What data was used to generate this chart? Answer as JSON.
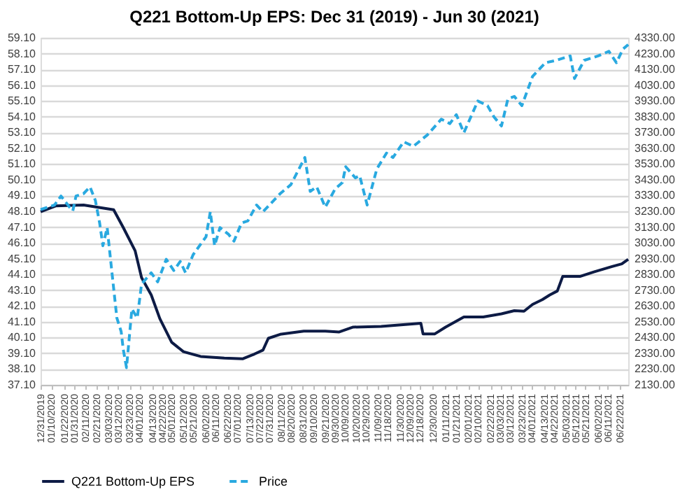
{
  "chart_data": {
    "type": "line",
    "title": "Q221 Bottom-Up EPS: Dec 31 (2019) - Jun 30 (2021)",
    "xlim": [
      "2019-12-31",
      "2021-06-30"
    ],
    "xticks": [
      {
        "value": "2019-12-31",
        "label": "12/31/2019"
      },
      {
        "value": "2020-01-10",
        "label": "01/10/2020"
      },
      {
        "value": "2020-01-22",
        "label": "01/22/2020"
      },
      {
        "value": "2020-01-31",
        "label": "01/31/2020"
      },
      {
        "value": "2020-02-11",
        "label": "02/11/2020"
      },
      {
        "value": "2020-02-21",
        "label": "02/21/2020"
      },
      {
        "value": "2020-03-03",
        "label": "03/03/2020"
      },
      {
        "value": "2020-03-12",
        "label": "03/12/2020"
      },
      {
        "value": "2020-03-23",
        "label": "03/23/2020"
      },
      {
        "value": "2020-04-01",
        "label": "04/01/2020"
      },
      {
        "value": "2020-04-13",
        "label": "04/13/2020"
      },
      {
        "value": "2020-04-22",
        "label": "04/22/2020"
      },
      {
        "value": "2020-05-01",
        "label": "05/01/2020"
      },
      {
        "value": "2020-05-12",
        "label": "05/12/2020"
      },
      {
        "value": "2020-05-21",
        "label": "05/21/2020"
      },
      {
        "value": "2020-06-02",
        "label": "06/02/2020"
      },
      {
        "value": "2020-06-11",
        "label": "06/11/2020"
      },
      {
        "value": "2020-06-22",
        "label": "06/22/2020"
      },
      {
        "value": "2020-07-01",
        "label": "07/01/2020"
      },
      {
        "value": "2020-07-13",
        "label": "07/13/2020"
      },
      {
        "value": "2020-07-22",
        "label": "07/22/2020"
      },
      {
        "value": "2020-07-31",
        "label": "07/31/2020"
      },
      {
        "value": "2020-08-11",
        "label": "08/11/2020"
      },
      {
        "value": "2020-08-20",
        "label": "08/20/2020"
      },
      {
        "value": "2020-08-31",
        "label": "08/31/2020"
      },
      {
        "value": "2020-09-10",
        "label": "09/10/2020"
      },
      {
        "value": "2020-09-21",
        "label": "09/21/2020"
      },
      {
        "value": "2020-09-30",
        "label": "09/30/2020"
      },
      {
        "value": "2020-10-09",
        "label": "10/09/2020"
      },
      {
        "value": "2020-10-20",
        "label": "10/20/2020"
      },
      {
        "value": "2020-10-29",
        "label": "10/29/2020"
      },
      {
        "value": "2020-11-09",
        "label": "11/09/2020"
      },
      {
        "value": "2020-11-18",
        "label": "11/18/2020"
      },
      {
        "value": "2020-11-30",
        "label": "11/30/2020"
      },
      {
        "value": "2020-12-09",
        "label": "12/09/2020"
      },
      {
        "value": "2020-12-18",
        "label": "12/18/2020"
      },
      {
        "value": "2020-12-30",
        "label": "12/30/2020"
      },
      {
        "value": "2021-01-11",
        "label": "01/11/2021"
      },
      {
        "value": "2021-01-21",
        "label": "01/21/2021"
      },
      {
        "value": "2021-02-01",
        "label": "02/01/2021"
      },
      {
        "value": "2021-02-10",
        "label": "02/10/2021"
      },
      {
        "value": "2021-02-22",
        "label": "02/22/2021"
      },
      {
        "value": "2021-03-03",
        "label": "03/03/2021"
      },
      {
        "value": "2021-03-12",
        "label": "03/12/2021"
      },
      {
        "value": "2021-03-23",
        "label": "03/23/2021"
      },
      {
        "value": "2021-04-01",
        "label": "04/01/2021"
      },
      {
        "value": "2021-04-13",
        "label": "04/13/2021"
      },
      {
        "value": "2021-04-22",
        "label": "04/22/2021"
      },
      {
        "value": "2021-05-03",
        "label": "05/03/2021"
      },
      {
        "value": "2021-05-12",
        "label": "05/12/2021"
      },
      {
        "value": "2021-05-21",
        "label": "05/21/2021"
      },
      {
        "value": "2021-06-02",
        "label": "06/02/2021"
      },
      {
        "value": "2021-06-11",
        "label": "06/11/2021"
      },
      {
        "value": "2021-06-22",
        "label": "06/22/2021"
      }
    ],
    "ylim": [
      37.1,
      59.1
    ],
    "yticks": [
      {
        "value": 37.1,
        "label": "37.10"
      },
      {
        "value": 38.1,
        "label": "38.10"
      },
      {
        "value": 39.1,
        "label": "39.10"
      },
      {
        "value": 40.1,
        "label": "40.10"
      },
      {
        "value": 41.1,
        "label": "41.10"
      },
      {
        "value": 42.1,
        "label": "42.10"
      },
      {
        "value": 43.1,
        "label": "43.10"
      },
      {
        "value": 44.1,
        "label": "44.10"
      },
      {
        "value": 45.1,
        "label": "45.10"
      },
      {
        "value": 46.1,
        "label": "46.10"
      },
      {
        "value": 47.1,
        "label": "47.10"
      },
      {
        "value": 48.1,
        "label": "48.10"
      },
      {
        "value": 49.1,
        "label": "49.10"
      },
      {
        "value": 50.1,
        "label": "50.10"
      },
      {
        "value": 51.1,
        "label": "51.10"
      },
      {
        "value": 52.1,
        "label": "52.10"
      },
      {
        "value": 53.1,
        "label": "53.10"
      },
      {
        "value": 54.1,
        "label": "54.10"
      },
      {
        "value": 55.1,
        "label": "55.10"
      },
      {
        "value": 56.1,
        "label": "56.10"
      },
      {
        "value": 57.1,
        "label": "57.10"
      },
      {
        "value": 58.1,
        "label": "58.10"
      },
      {
        "value": 59.1,
        "label": "59.10"
      }
    ],
    "y2lim": [
      2130,
      4330
    ],
    "y2ticks": [
      {
        "value": 2130,
        "label": "2130.00"
      },
      {
        "value": 2230,
        "label": "2230.00"
      },
      {
        "value": 2330,
        "label": "2330.00"
      },
      {
        "value": 2430,
        "label": "2430.00"
      },
      {
        "value": 2530,
        "label": "2530.00"
      },
      {
        "value": 2630,
        "label": "2630.00"
      },
      {
        "value": 2730,
        "label": "2730.00"
      },
      {
        "value": 2830,
        "label": "2830.00"
      },
      {
        "value": 2930,
        "label": "2930.00"
      },
      {
        "value": 3030,
        "label": "3030.00"
      },
      {
        "value": 3130,
        "label": "3130.00"
      },
      {
        "value": 3230,
        "label": "3230.00"
      },
      {
        "value": 3330,
        "label": "3330.00"
      },
      {
        "value": 3430,
        "label": "3430.00"
      },
      {
        "value": 3530,
        "label": "3530.00"
      },
      {
        "value": 3630,
        "label": "3630.00"
      },
      {
        "value": 3730,
        "label": "3730.00"
      },
      {
        "value": 3830,
        "label": "3830.00"
      },
      {
        "value": 3930,
        "label": "3930.00"
      },
      {
        "value": 4030,
        "label": "4030.00"
      },
      {
        "value": 4130,
        "label": "4130.00"
      },
      {
        "value": 4230,
        "label": "4230.00"
      },
      {
        "value": 4330,
        "label": "4330.00"
      }
    ],
    "grid": "y",
    "legend": "bottom",
    "series": [
      {
        "name": "Q221 Bottom-Up EPS",
        "color": "#0d1b45",
        "line_style": "solid",
        "x": [
          "2019-12-31",
          "2020-01-14",
          "2020-02-09",
          "2020-03-08",
          "2020-03-17",
          "2020-03-28",
          "2020-04-03",
          "2020-04-12",
          "2020-04-20",
          "2020-05-01",
          "2020-05-12",
          "2020-05-28",
          "2020-06-19",
          "2020-07-06",
          "2020-07-17",
          "2020-07-25",
          "2020-07-30",
          "2020-08-10",
          "2020-09-01",
          "2020-09-21",
          "2020-10-04",
          "2020-10-17",
          "2020-11-12",
          "2020-12-19",
          "2020-12-21",
          "2021-01-01",
          "2021-01-11",
          "2021-01-28",
          "2021-02-15",
          "2021-03-04",
          "2021-03-16",
          "2021-03-25",
          "2021-04-02",
          "2021-04-11",
          "2021-04-18",
          "2021-04-25",
          "2021-04-30",
          "2021-05-16",
          "2021-05-29",
          "2021-06-15",
          "2021-06-24",
          "2021-06-30"
        ],
        "values": [
          48.07,
          48.44,
          48.5,
          48.2,
          47.07,
          45.6,
          43.9,
          42.8,
          41.3,
          39.8,
          39.2,
          38.9,
          38.8,
          38.75,
          39.05,
          39.3,
          40.05,
          40.3,
          40.5,
          40.5,
          40.45,
          40.76,
          40.8,
          41.0,
          40.33,
          40.33,
          40.76,
          41.4,
          41.4,
          41.6,
          41.8,
          41.77,
          42.2,
          42.5,
          42.8,
          43.05,
          43.97,
          43.97,
          44.26,
          44.6,
          44.77,
          45.06
        ]
      },
      {
        "name": "Price",
        "color": "#29a9e0",
        "line_style": "dashed",
        "axis": "y2",
        "x": [
          "2019-12-31",
          "2020-01-13",
          "2020-01-19",
          "2020-01-27",
          "2020-01-30",
          "2020-02-02",
          "2020-02-09",
          "2020-02-15",
          "2020-02-20",
          "2020-02-24",
          "2020-02-27",
          "2020-03-02",
          "2020-03-06",
          "2020-03-11",
          "2020-03-15",
          "2020-03-17",
          "2020-03-20",
          "2020-03-25",
          "2020-03-30",
          "2020-04-03",
          "2020-04-12",
          "2020-04-18",
          "2020-04-26",
          "2020-05-03",
          "2020-05-09",
          "2020-05-14",
          "2020-05-21",
          "2020-06-02",
          "2020-06-06",
          "2020-06-10",
          "2020-06-15",
          "2020-06-23",
          "2020-06-28",
          "2020-07-05",
          "2020-07-11",
          "2020-07-19",
          "2020-07-25",
          "2020-08-10",
          "2020-08-20",
          "2020-09-02",
          "2020-09-07",
          "2020-09-13",
          "2020-09-21",
          "2020-09-30",
          "2020-10-07",
          "2020-10-10",
          "2020-10-19",
          "2020-10-23",
          "2020-10-30",
          "2020-11-08",
          "2020-11-17",
          "2020-11-23",
          "2020-12-03",
          "2020-12-12",
          "2020-12-25",
          "2021-01-07",
          "2021-01-15",
          "2021-01-21",
          "2021-01-28",
          "2021-02-10",
          "2021-02-19",
          "2021-02-25",
          "2021-03-04",
          "2021-03-10",
          "2021-03-16",
          "2021-03-23",
          "2021-04-02",
          "2021-04-14",
          "2021-04-24",
          "2021-05-07",
          "2021-05-11",
          "2021-05-20",
          "2021-06-02",
          "2021-06-12",
          "2021-06-19",
          "2021-06-25",
          "2021-06-30"
        ],
        "values": [
          3241,
          3270,
          3327,
          3256,
          3233,
          3327,
          3342,
          3385,
          3299,
          3155,
          3012,
          3127,
          2869,
          2554,
          2468,
          2353,
          2239,
          2611,
          2554,
          2769,
          2840,
          2783,
          2926,
          2855,
          2912,
          2840,
          2955,
          3069,
          3227,
          3012,
          3127,
          3084,
          3041,
          3155,
          3170,
          3270,
          3227,
          3342,
          3399,
          3571,
          3356,
          3385,
          3256,
          3370,
          3413,
          3513,
          3442,
          3456,
          3270,
          3499,
          3599,
          3571,
          3671,
          3642,
          3714,
          3814,
          3786,
          3843,
          3728,
          3929,
          3900,
          3829,
          3771,
          3943,
          3958,
          3900,
          4086,
          4172,
          4187,
          4215,
          4072,
          4187,
          4215,
          4244,
          4172,
          4258,
          4287
        ]
      }
    ]
  }
}
